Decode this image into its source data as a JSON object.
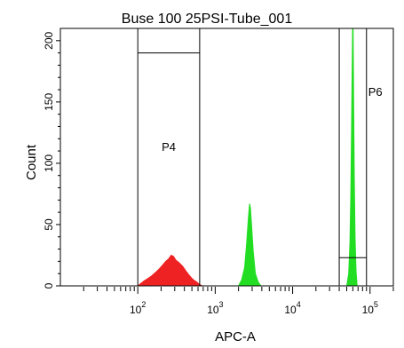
{
  "chart_data": {
    "type": "area",
    "title": "Buse 100 25PSI-Tube_001",
    "xlabel": "APC-A",
    "ylabel": "Count",
    "x_scale": "log",
    "xlim": [
      10,
      200000
    ],
    "ylim": [
      0,
      210
    ],
    "x_ticks": [
      {
        "value": 100,
        "base": "10",
        "exp": "2"
      },
      {
        "value": 1000,
        "base": "10",
        "exp": "3"
      },
      {
        "value": 10000,
        "base": "10",
        "exp": "4"
      },
      {
        "value": 100000,
        "base": "10",
        "exp": "5"
      }
    ],
    "y_ticks": [
      0,
      50,
      100,
      150,
      200
    ],
    "y_tick_labels": [
      "0",
      "50",
      "100",
      "150",
      "200"
    ],
    "gates": [
      {
        "name": "P4",
        "x_range": [
          100,
          630
        ],
        "bar_y": 190,
        "label_y": 110
      },
      {
        "name": "P6",
        "x_range": [
          40000,
          90000
        ],
        "bar_y": 23,
        "label_y": 155
      }
    ],
    "series": [
      {
        "color": "#ee2222",
        "points": [
          [
            100,
            0
          ],
          [
            110,
            2
          ],
          [
            120,
            4
          ],
          [
            135,
            6
          ],
          [
            150,
            8
          ],
          [
            170,
            11
          ],
          [
            190,
            14
          ],
          [
            210,
            17
          ],
          [
            230,
            20
          ],
          [
            250,
            22
          ],
          [
            270,
            25
          ],
          [
            290,
            24
          ],
          [
            310,
            21
          ],
          [
            340,
            19
          ],
          [
            380,
            16
          ],
          [
            420,
            12
          ],
          [
            470,
            8
          ],
          [
            520,
            5
          ],
          [
            580,
            3
          ],
          [
            630,
            1
          ],
          [
            680,
            0
          ]
        ]
      },
      {
        "color": "#22dd22",
        "points": [
          [
            2000,
            0
          ],
          [
            2200,
            5
          ],
          [
            2400,
            15
          ],
          [
            2550,
            35
          ],
          [
            2680,
            55
          ],
          [
            2780,
            67
          ],
          [
            2850,
            64
          ],
          [
            2950,
            50
          ],
          [
            3100,
            28
          ],
          [
            3300,
            10
          ],
          [
            3600,
            3
          ],
          [
            3900,
            0
          ]
        ]
      },
      {
        "color": "#22dd22",
        "points": [
          [
            50000,
            0
          ],
          [
            53000,
            10
          ],
          [
            55000,
            35
          ],
          [
            56500,
            75
          ],
          [
            57500,
            120
          ],
          [
            58500,
            170
          ],
          [
            59500,
            210
          ],
          [
            60500,
            210
          ],
          [
            61500,
            150
          ],
          [
            62500,
            90
          ],
          [
            64000,
            40
          ],
          [
            66000,
            12
          ],
          [
            68000,
            0
          ]
        ]
      }
    ]
  }
}
